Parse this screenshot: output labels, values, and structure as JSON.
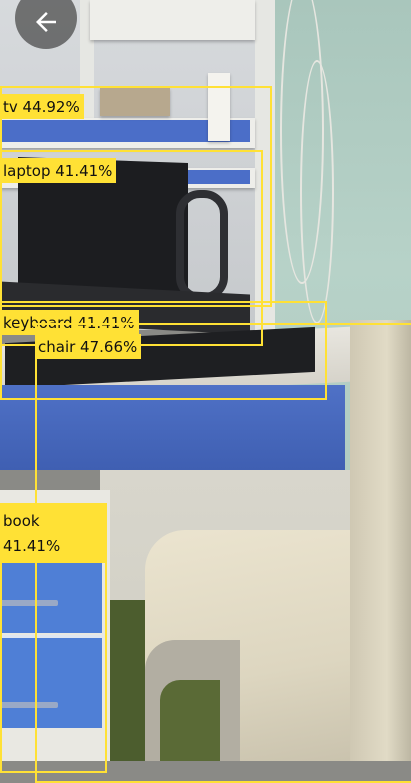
{
  "navigation": {
    "back_icon": "arrow-left-icon"
  },
  "colors": {
    "box": "#ffe135",
    "label_text": "#111111"
  },
  "detections": {
    "tv": {
      "label": "tv 44.92%"
    },
    "laptop": {
      "label": "laptop 41.41%"
    },
    "keyboard": {
      "label": "keyboard 41.41%"
    },
    "chair": {
      "label": "chair 47.66%"
    },
    "book": {
      "label_name": "book",
      "label_score": "41.41%"
    }
  }
}
